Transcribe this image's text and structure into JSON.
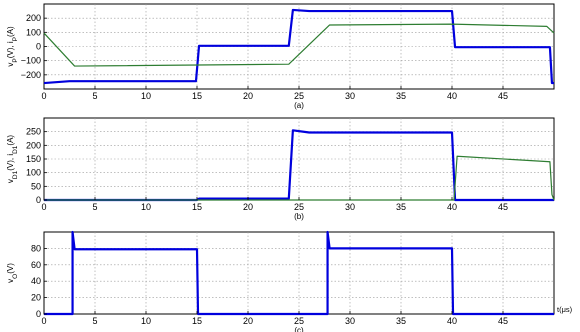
{
  "chart_data": [
    {
      "type": "line",
      "caption": "(a)",
      "ylabel": "v_P(V), i_P(A)",
      "xlim": [
        0,
        50
      ],
      "ylim": [
        -300,
        300
      ],
      "xticks": [
        0,
        5,
        10,
        15,
        20,
        25,
        30,
        35,
        40,
        45
      ],
      "yticks": [
        -200,
        -100,
        0,
        100,
        200
      ],
      "ytick_labels": [
        "−200",
        "−100",
        "0",
        "100",
        "200"
      ],
      "grid": true,
      "series": [
        {
          "color": "#0000dd",
          "width": 2.2,
          "x": [
            0,
            2.5,
            14.9,
            15.2,
            24.0,
            24.4,
            26.0,
            40.0,
            40.3,
            49.6,
            49.8,
            50
          ],
          "y": [
            -258,
            -245,
            -245,
            5,
            5,
            258,
            250,
            250,
            -5,
            -5,
            -258,
            -258
          ]
        },
        {
          "color": "#2e7d32",
          "width": 1.2,
          "x": [
            0,
            3.0,
            24.0,
            28.0,
            40.0,
            49.3,
            50
          ],
          "y": [
            95,
            -138,
            -125,
            152,
            158,
            142,
            95
          ]
        }
      ]
    },
    {
      "type": "line",
      "caption": "(b)",
      "ylabel": "v_D1(V), i_D1(A)",
      "xlim": [
        0,
        50
      ],
      "ylim": [
        0,
        300
      ],
      "xticks": [
        0,
        5,
        10,
        15,
        20,
        25,
        30,
        35,
        40,
        45
      ],
      "yticks": [
        0,
        50,
        100,
        150,
        200,
        250
      ],
      "ytick_labels": [
        "0",
        "50",
        "100",
        "150",
        "200",
        "250"
      ],
      "grid": true,
      "series": [
        {
          "color": "#0000dd",
          "width": 2.2,
          "x": [
            0,
            15.0,
            15.2,
            24.0,
            24.4,
            26.0,
            40.0,
            40.3,
            50
          ],
          "y": [
            0,
            0,
            5,
            5,
            255,
            247,
            247,
            0,
            0
          ]
        },
        {
          "color": "#2e7d32",
          "width": 1.2,
          "x": [
            0,
            40.2,
            40.5,
            49.6,
            49.8,
            50
          ],
          "y": [
            0,
            0,
            160,
            140,
            20,
            0
          ]
        }
      ]
    },
    {
      "type": "line",
      "caption": "(c)",
      "ylabel": "v_O(V)",
      "xlabel": "t(μs)",
      "xlim": [
        0,
        50
      ],
      "ylim": [
        0,
        100
      ],
      "xticks": [
        0,
        5,
        10,
        15,
        20,
        25,
        30,
        35,
        40,
        45
      ],
      "yticks": [
        0,
        20,
        40,
        60,
        80
      ],
      "ytick_labels": [
        "0",
        "20",
        "40",
        "60",
        "80"
      ],
      "grid": true,
      "series": [
        {
          "color": "#0000dd",
          "width": 2.2,
          "x": [
            0,
            2.8,
            2.8,
            3.0,
            15.0,
            15.1,
            27.8,
            27.8,
            28.0,
            40.0,
            40.1,
            50
          ],
          "y": [
            0,
            0,
            100,
            79,
            79,
            0,
            0,
            100,
            80,
            80,
            0,
            0
          ]
        }
      ]
    }
  ]
}
